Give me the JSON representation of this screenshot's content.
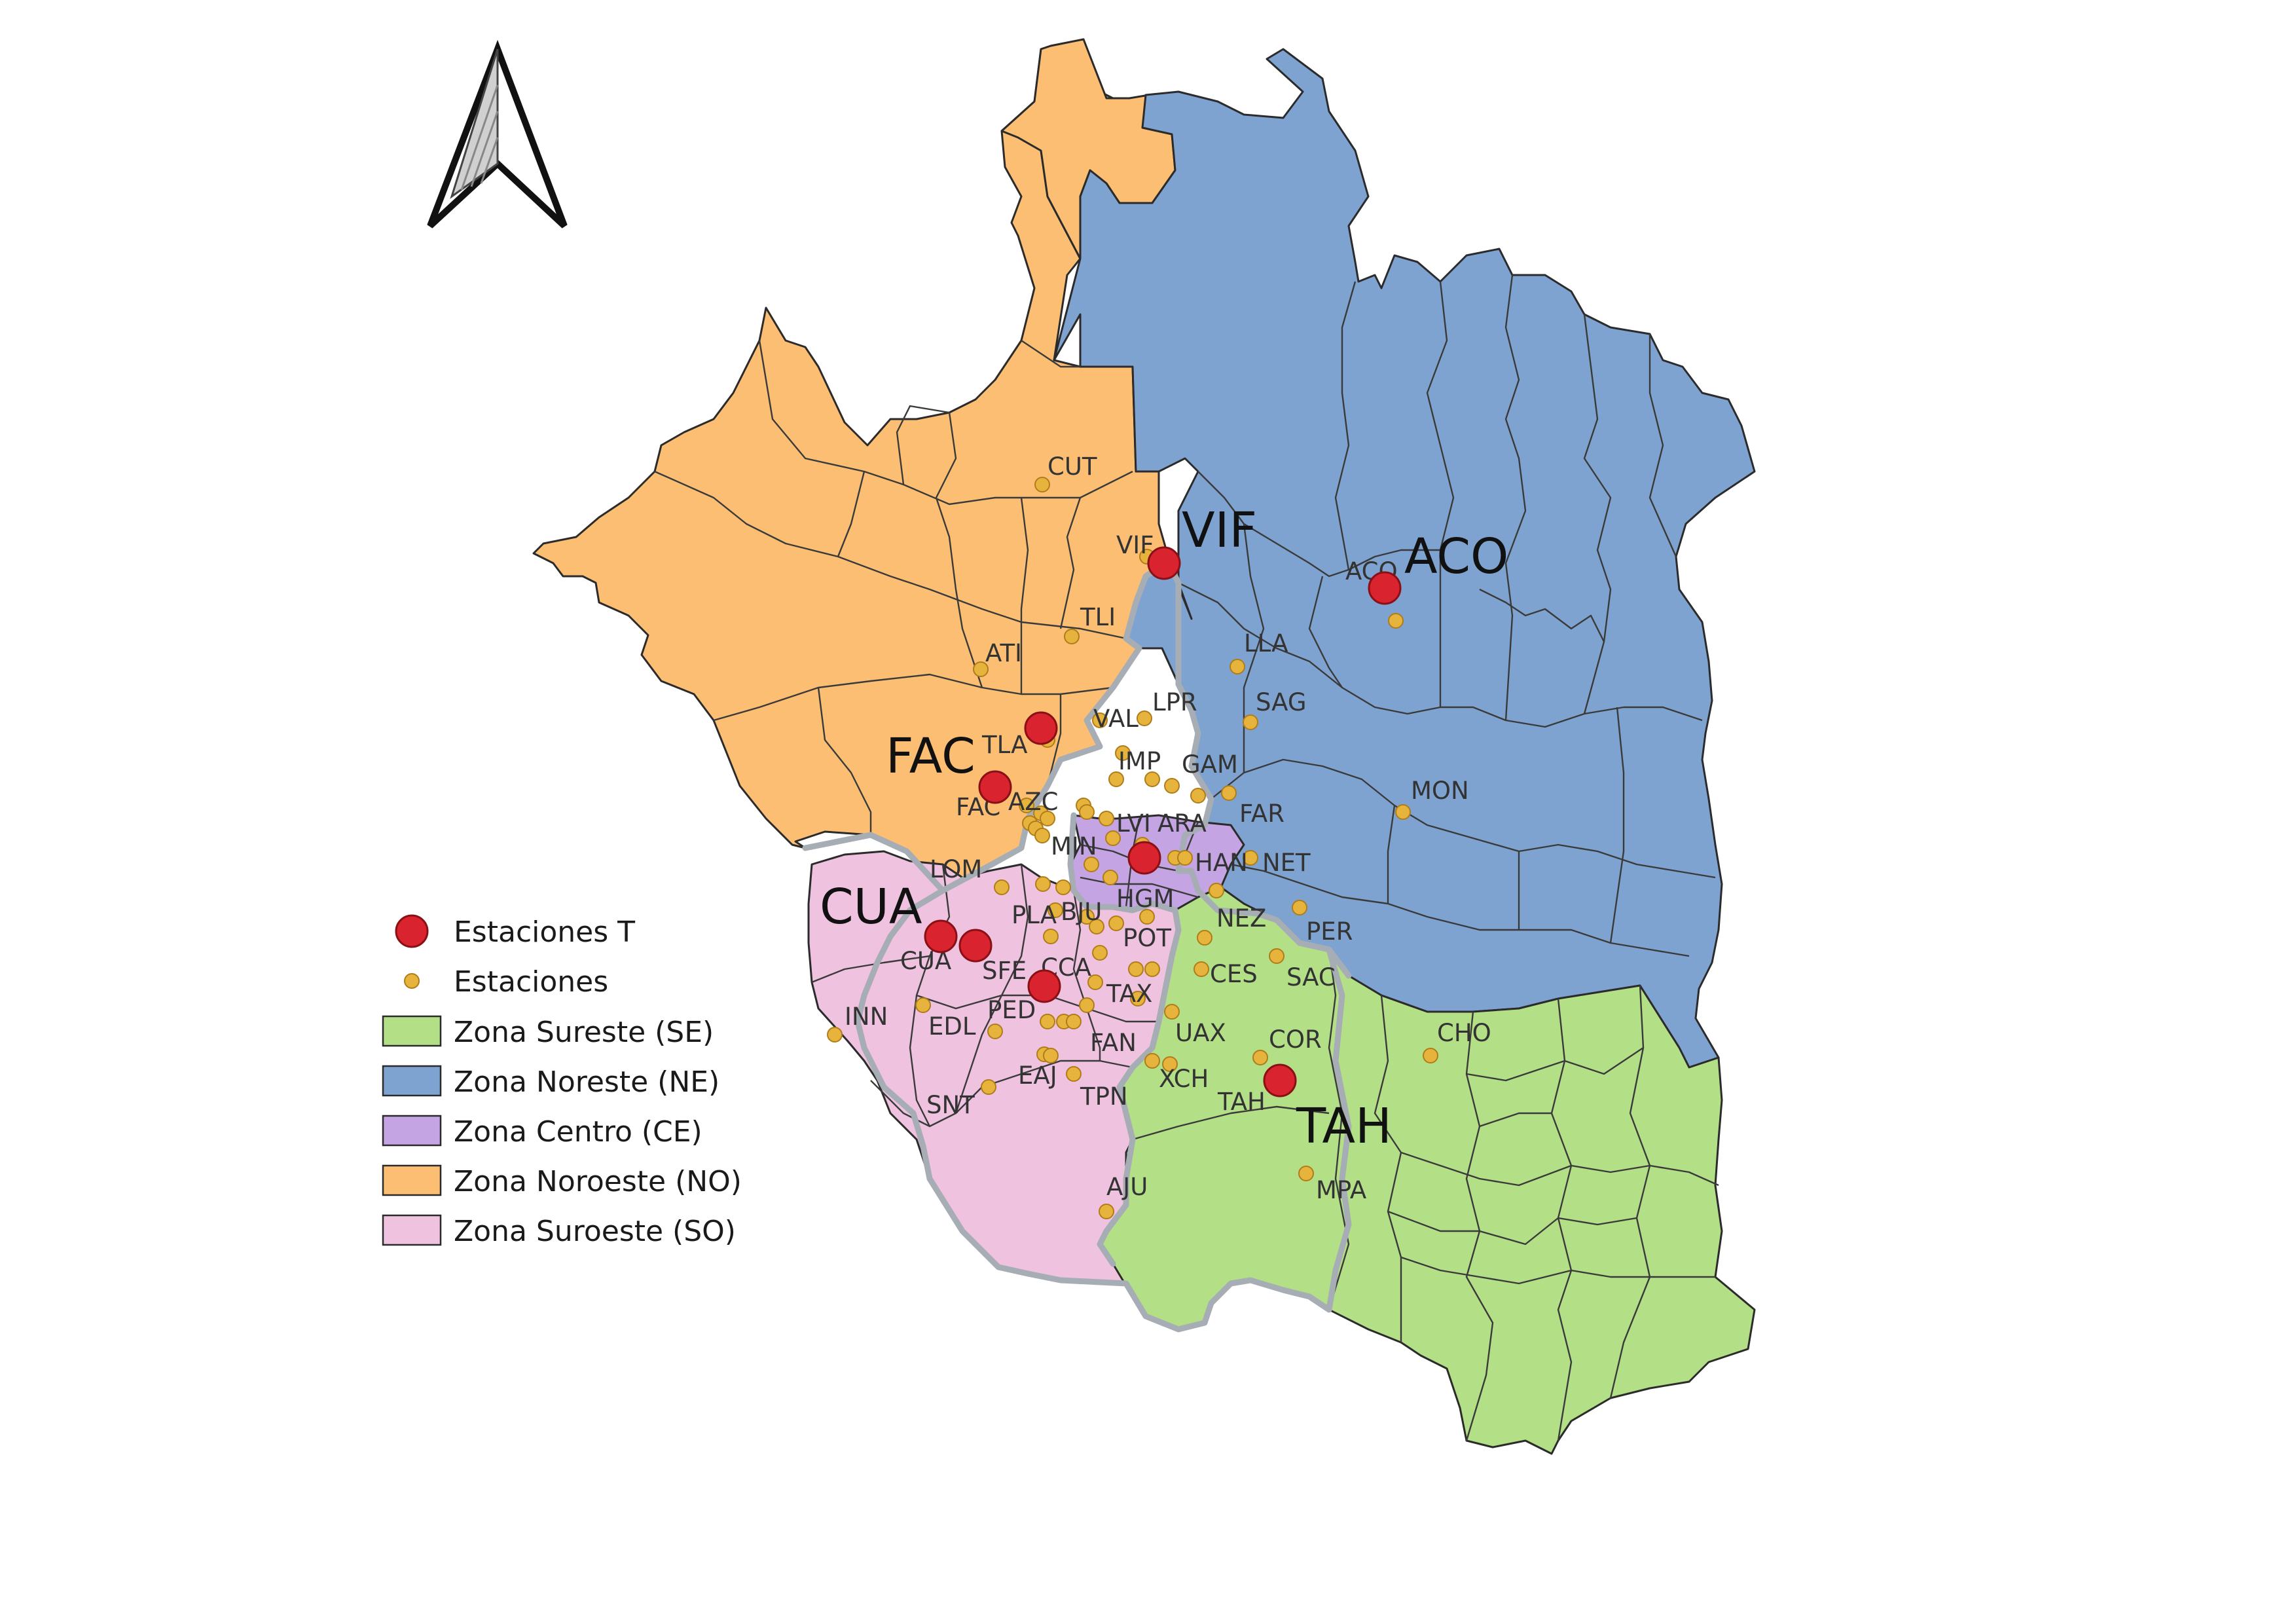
{
  "legend": {
    "t_stations": "Estaciones T",
    "stations": "Estaciones",
    "zones": [
      {
        "label": "Zona Sureste (SE)",
        "color": "#b3df86"
      },
      {
        "label": "Zona Noreste (NE)",
        "color": "#7fa3d0"
      },
      {
        "label": "Zona Centro (CE)",
        "color": "#c4a4e3"
      },
      {
        "label": "Zona Noroeste (NO)",
        "color": "#fbbe73"
      },
      {
        "label": "Zona Suroeste (SO)",
        "color": "#efc2df"
      }
    ]
  },
  "colors": {
    "t_station": "#d9232e",
    "station": "#e6b43c",
    "zone_boundary": "#a7adb4"
  },
  "north_arrow": "north-arrow-icon",
  "t_station_names": [
    "VIF",
    "ACO",
    "FAC",
    "CUA",
    "TAH"
  ],
  "station_codes": [
    "CUT",
    "VIF",
    "TLI",
    "ATI",
    "TLA",
    "VAL",
    "LPR",
    "IMP",
    "GAM",
    "FAC",
    "AZC",
    "LVI",
    "ARA",
    "FAR",
    "MIN",
    "HAN",
    "NET",
    "LOM",
    "HGM",
    "NEZ",
    "PLA",
    "BJU",
    "POT",
    "PER",
    "CUA",
    "SFE",
    "CCA",
    "CES",
    "SAC",
    "PED",
    "TAX",
    "EDL",
    "UAX",
    "FAN",
    "COR",
    "EAJ",
    "XCH",
    "TPN",
    "TAH",
    "SNT",
    "INN",
    "MPA",
    "AJU",
    "ACO",
    "LLA",
    "SAG",
    "MON",
    "CHO"
  ]
}
